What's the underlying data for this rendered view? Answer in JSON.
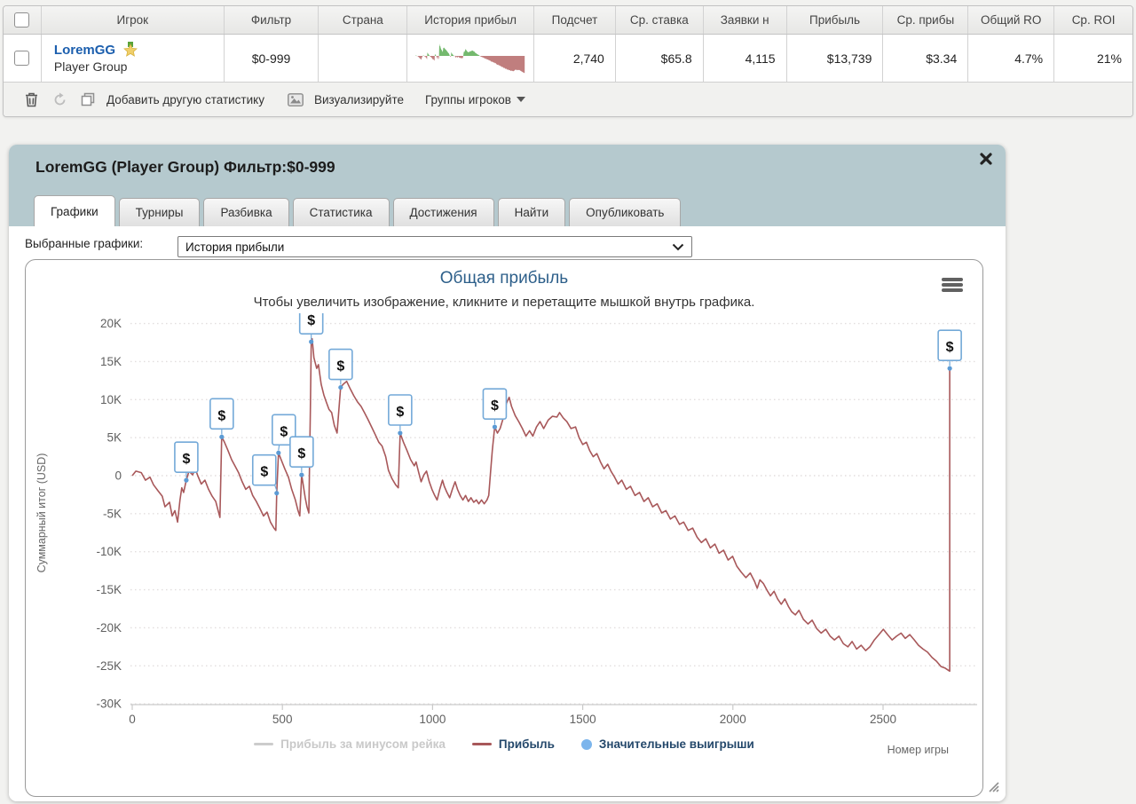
{
  "table": {
    "columns": [
      "Игрок",
      "Фильтр",
      "Страна",
      "История прибыл",
      "Подсчет",
      "Ср. ставка",
      "Заявки н",
      "Прибыль",
      "Ср. прибы",
      "Общий RO",
      "Ср. ROI"
    ],
    "row": {
      "player": "LoremGG",
      "group": "Player Group",
      "filter": "$0-999",
      "country": "",
      "count": "2,740",
      "avg_stake": "$65.8",
      "entries": "4,115",
      "profit": "$13,739",
      "avg_profit": "$3.34",
      "total_roi": "4.7%",
      "avg_roi": "21%"
    },
    "toolbar": {
      "add_stat": "Добавить другую статистику",
      "visualize": "Визуализируйте",
      "player_groups": "Группы игроков"
    }
  },
  "panel": {
    "title": "LoremGG (Player Group) Фильтр:$0-999",
    "tabs": [
      {
        "label": "Графики",
        "active": true
      },
      {
        "label": "Турниры",
        "active": false
      },
      {
        "label": "Разбивка",
        "active": false
      },
      {
        "label": "Статистика",
        "active": false
      },
      {
        "label": "Достижения",
        "active": false
      },
      {
        "label": "Найти",
        "active": false
      },
      {
        "label": "Опубликовать",
        "active": false
      }
    ],
    "selected_graphs_label": "Выбранные графики:",
    "graph_select_value": "История прибыли"
  },
  "chart_data": {
    "type": "line",
    "title": "Общая прибыль",
    "subtitle": "Чтобы увеличить изображение, кликните и перетащите мышкой внутрь графика.",
    "ylabel": "Суммарный итог (USD)",
    "xlabel": "Номер игры",
    "xlim": [
      0,
      2800
    ],
    "ylim": [
      -30000,
      20000
    ],
    "xticks": [
      0,
      500,
      1000,
      1500,
      2000,
      2500
    ],
    "yticks": [
      {
        "v": 20000,
        "label": "20K"
      },
      {
        "v": 15000,
        "label": "15K"
      },
      {
        "v": 10000,
        "label": "10K"
      },
      {
        "v": 5000,
        "label": "5K"
      },
      {
        "v": 0,
        "label": "0"
      },
      {
        "v": -5000,
        "label": "-5K"
      },
      {
        "v": -10000,
        "label": "-10K"
      },
      {
        "v": -15000,
        "label": "-15K"
      },
      {
        "v": -20000,
        "label": "-20K"
      },
      {
        "v": -25000,
        "label": "-25K"
      },
      {
        "v": -30000,
        "label": "-30K"
      }
    ],
    "grid": "dotted",
    "legend_position": "bottom",
    "legend": [
      {
        "label": "Прибыль за минусом рейка",
        "type": "line",
        "color": "#cccccc",
        "disabled": true
      },
      {
        "label": "Прибыль",
        "type": "line",
        "color": "#a8585a",
        "disabled": false
      },
      {
        "label": "Значительные выигрыши",
        "type": "marker",
        "color": "#7cb5ec",
        "disabled": false
      }
    ],
    "series": [
      {
        "name": "Прибыль",
        "color": "#a8585a",
        "points": [
          [
            0,
            0
          ],
          [
            12,
            600
          ],
          [
            30,
            400
          ],
          [
            44,
            -600
          ],
          [
            59,
            -200
          ],
          [
            71,
            -1200
          ],
          [
            86,
            -2000
          ],
          [
            100,
            -2700
          ],
          [
            109,
            -4100
          ],
          [
            124,
            -3500
          ],
          [
            133,
            -5300
          ],
          [
            142,
            -4600
          ],
          [
            151,
            -6100
          ],
          [
            159,
            -3200
          ],
          [
            165,
            -1600
          ],
          [
            171,
            -2200
          ],
          [
            180,
            -600
          ],
          [
            189,
            600
          ],
          [
            201,
            100
          ],
          [
            210,
            900
          ],
          [
            218,
            0
          ],
          [
            230,
            -1100
          ],
          [
            242,
            -600
          ],
          [
            254,
            -1800
          ],
          [
            266,
            -2700
          ],
          [
            278,
            -3400
          ],
          [
            286,
            -4600
          ],
          [
            292,
            -5500
          ],
          [
            298,
            5100
          ],
          [
            307,
            4400
          ],
          [
            319,
            3300
          ],
          [
            331,
            2100
          ],
          [
            342,
            1300
          ],
          [
            354,
            400
          ],
          [
            366,
            -800
          ],
          [
            378,
            -1800
          ],
          [
            390,
            -1400
          ],
          [
            401,
            -2600
          ],
          [
            413,
            -3400
          ],
          [
            425,
            -4300
          ],
          [
            437,
            -5300
          ],
          [
            449,
            -4800
          ],
          [
            460,
            -6100
          ],
          [
            472,
            -6900
          ],
          [
            478,
            -7200
          ],
          [
            481,
            -2300
          ],
          [
            487,
            3000
          ],
          [
            496,
            2100
          ],
          [
            508,
            900
          ],
          [
            520,
            -200
          ],
          [
            531,
            -1800
          ],
          [
            543,
            -3200
          ],
          [
            552,
            -4600
          ],
          [
            558,
            -5300
          ],
          [
            564,
            100
          ],
          [
            570,
            -1400
          ],
          [
            576,
            -2900
          ],
          [
            582,
            -4100
          ],
          [
            588,
            -4900
          ],
          [
            590,
            900
          ],
          [
            593,
            8500
          ],
          [
            596,
            17600
          ],
          [
            599,
            18000
          ],
          [
            605,
            15500
          ],
          [
            614,
            14100
          ],
          [
            620,
            14600
          ],
          [
            629,
            12000
          ],
          [
            638,
            10600
          ],
          [
            646,
            9700
          ],
          [
            655,
            8700
          ],
          [
            664,
            8300
          ],
          [
            673,
            6600
          ],
          [
            682,
            5600
          ],
          [
            694,
            11600
          ],
          [
            702,
            12000
          ],
          [
            714,
            12400
          ],
          [
            726,
            11400
          ],
          [
            738,
            10500
          ],
          [
            750,
            9700
          ],
          [
            762,
            9100
          ],
          [
            773,
            8300
          ],
          [
            785,
            7400
          ],
          [
            797,
            6400
          ],
          [
            809,
            5400
          ],
          [
            821,
            4400
          ],
          [
            832,
            3900
          ],
          [
            844,
            2500
          ],
          [
            853,
            700
          ],
          [
            865,
            -400
          ],
          [
            877,
            -1200
          ],
          [
            886,
            -1600
          ],
          [
            892,
            5600
          ],
          [
            903,
            4400
          ],
          [
            915,
            3300
          ],
          [
            927,
            2100
          ],
          [
            939,
            1300
          ],
          [
            945,
            1800
          ],
          [
            954,
            400
          ],
          [
            962,
            -800
          ],
          [
            971,
            100
          ],
          [
            980,
            600
          ],
          [
            989,
            -800
          ],
          [
            998,
            -1800
          ],
          [
            1007,
            -2600
          ],
          [
            1015,
            -3200
          ],
          [
            1024,
            -1800
          ],
          [
            1033,
            -600
          ],
          [
            1039,
            -1400
          ],
          [
            1048,
            -2200
          ],
          [
            1057,
            -2900
          ],
          [
            1066,
            -1800
          ],
          [
            1075,
            -800
          ],
          [
            1083,
            -1800
          ],
          [
            1092,
            -2600
          ],
          [
            1101,
            -3200
          ],
          [
            1110,
            -2600
          ],
          [
            1119,
            -3400
          ],
          [
            1128,
            -2900
          ],
          [
            1137,
            -3500
          ],
          [
            1146,
            -3200
          ],
          [
            1154,
            -3700
          ],
          [
            1163,
            -3200
          ],
          [
            1172,
            -3700
          ],
          [
            1181,
            -3200
          ],
          [
            1187,
            -2600
          ],
          [
            1193,
            400
          ],
          [
            1199,
            3300
          ],
          [
            1207,
            6400
          ],
          [
            1216,
            5600
          ],
          [
            1225,
            6200
          ],
          [
            1234,
            7400
          ],
          [
            1246,
            9500
          ],
          [
            1255,
            10300
          ],
          [
            1263,
            9100
          ],
          [
            1275,
            7900
          ],
          [
            1287,
            7100
          ],
          [
            1299,
            6200
          ],
          [
            1311,
            5200
          ],
          [
            1323,
            5900
          ],
          [
            1334,
            5200
          ],
          [
            1346,
            6400
          ],
          [
            1358,
            7100
          ],
          [
            1370,
            6200
          ],
          [
            1385,
            7300
          ],
          [
            1399,
            7800
          ],
          [
            1414,
            7700
          ],
          [
            1423,
            8300
          ],
          [
            1435,
            7600
          ],
          [
            1447,
            7100
          ],
          [
            1461,
            6200
          ],
          [
            1476,
            6400
          ],
          [
            1488,
            5000
          ],
          [
            1500,
            4100
          ],
          [
            1512,
            4400
          ],
          [
            1523,
            3300
          ],
          [
            1535,
            2500
          ],
          [
            1547,
            2900
          ],
          [
            1559,
            1800
          ],
          [
            1571,
            900
          ],
          [
            1583,
            1500
          ],
          [
            1594,
            600
          ],
          [
            1606,
            -200
          ],
          [
            1618,
            -1100
          ],
          [
            1630,
            -600
          ],
          [
            1645,
            -1800
          ],
          [
            1659,
            -1400
          ],
          [
            1674,
            -2600
          ],
          [
            1689,
            -2200
          ],
          [
            1704,
            -3400
          ],
          [
            1718,
            -2900
          ],
          [
            1733,
            -4100
          ],
          [
            1748,
            -3700
          ],
          [
            1763,
            -4900
          ],
          [
            1777,
            -4600
          ],
          [
            1792,
            -5700
          ],
          [
            1807,
            -5300
          ],
          [
            1822,
            -6400
          ],
          [
            1836,
            -6100
          ],
          [
            1851,
            -7200
          ],
          [
            1866,
            -6900
          ],
          [
            1881,
            -8100
          ],
          [
            1895,
            -8800
          ],
          [
            1910,
            -8300
          ],
          [
            1925,
            -9500
          ],
          [
            1940,
            -9000
          ],
          [
            1954,
            -10200
          ],
          [
            1969,
            -9800
          ],
          [
            1984,
            -11100
          ],
          [
            1999,
            -10600
          ],
          [
            2013,
            -11900
          ],
          [
            2028,
            -12700
          ],
          [
            2043,
            -13400
          ],
          [
            2058,
            -12800
          ],
          [
            2072,
            -13900
          ],
          [
            2081,
            -14800
          ],
          [
            2090,
            -13700
          ],
          [
            2102,
            -14200
          ],
          [
            2114,
            -15100
          ],
          [
            2125,
            -15800
          ],
          [
            2137,
            -15200
          ],
          [
            2149,
            -16200
          ],
          [
            2161,
            -16900
          ],
          [
            2173,
            -16200
          ],
          [
            2185,
            -17200
          ],
          [
            2196,
            -17900
          ],
          [
            2208,
            -18300
          ],
          [
            2220,
            -17700
          ],
          [
            2235,
            -18900
          ],
          [
            2250,
            -19500
          ],
          [
            2264,
            -19000
          ],
          [
            2279,
            -20100
          ],
          [
            2294,
            -20700
          ],
          [
            2309,
            -20200
          ],
          [
            2324,
            -21100
          ],
          [
            2338,
            -21600
          ],
          [
            2353,
            -21100
          ],
          [
            2368,
            -22100
          ],
          [
            2383,
            -22500
          ],
          [
            2397,
            -21800
          ],
          [
            2412,
            -22800
          ],
          [
            2427,
            -22300
          ],
          [
            2442,
            -23000
          ],
          [
            2456,
            -22500
          ],
          [
            2471,
            -21600
          ],
          [
            2486,
            -20900
          ],
          [
            2501,
            -20200
          ],
          [
            2515,
            -20900
          ],
          [
            2530,
            -21600
          ],
          [
            2545,
            -21100
          ],
          [
            2560,
            -20700
          ],
          [
            2574,
            -21400
          ],
          [
            2589,
            -20900
          ],
          [
            2604,
            -21600
          ],
          [
            2618,
            -22300
          ],
          [
            2633,
            -22800
          ],
          [
            2648,
            -23200
          ],
          [
            2663,
            -23900
          ],
          [
            2678,
            -24400
          ],
          [
            2693,
            -25100
          ],
          [
            2707,
            -25300
          ],
          [
            2722,
            -25700
          ],
          [
            2722,
            14100
          ]
        ]
      }
    ],
    "significant_wins": [
      {
        "game": 180,
        "value": -600
      },
      {
        "game": 298,
        "value": 5100
      },
      {
        "game": 481,
        "value": -2300
      },
      {
        "game": 487,
        "value": 3000
      },
      {
        "game": 564,
        "value": 100
      },
      {
        "game": 596,
        "value": 17600
      },
      {
        "game": 694,
        "value": 11600
      },
      {
        "game": 892,
        "value": 5600
      },
      {
        "game": 1207,
        "value": 6400
      },
      {
        "game": 2722,
        "value": 14100
      }
    ],
    "colors": {
      "line": "#a8585a",
      "marker_border": "#73a9d8",
      "marker_dot": "#5b9bd5",
      "spark_pos": "#74b96e",
      "spark_neg": "#c07e7e",
      "title": "#2d5f8a"
    }
  }
}
